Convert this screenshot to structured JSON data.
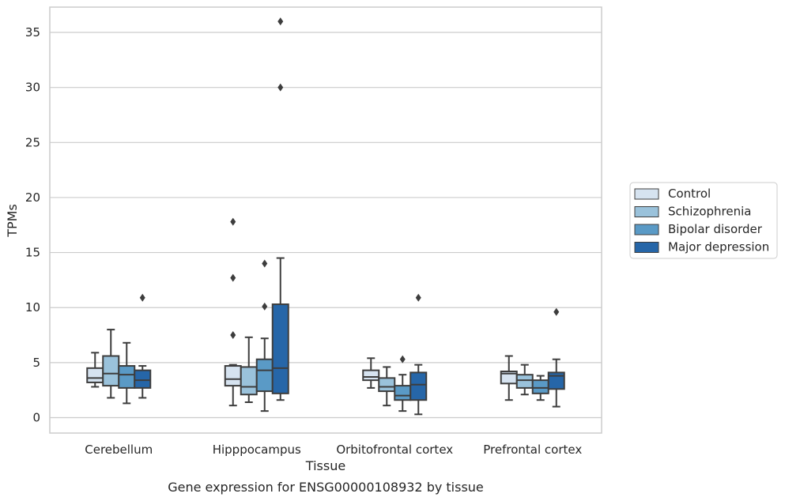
{
  "caption": "Gene expression for ENSG00000108932 by tissue",
  "chart_data": {
    "type": "boxplot",
    "xlabel": "Tissue",
    "ylabel": "TPMs",
    "ylim": [
      -1.4,
      37.3
    ],
    "yticks": [
      0,
      5,
      10,
      15,
      20,
      25,
      30,
      35
    ],
    "grid": "horizontal",
    "legend_position": "right",
    "categories": [
      "Cerebellum",
      "Hipppocampus",
      "Orbitofrontal cortex",
      "Prefrontal cortex"
    ],
    "series": [
      {
        "name": "Control",
        "color": "#d6e3f0",
        "boxes": [
          {
            "whislo": 2.8,
            "q1": 3.2,
            "med": 3.6,
            "q3": 4.5,
            "whishi": 5.9,
            "fliers": []
          },
          {
            "whislo": 1.1,
            "q1": 2.9,
            "med": 3.5,
            "q3": 4.7,
            "whishi": 4.8,
            "fliers": [
              7.5,
              12.7,
              17.8
            ]
          },
          {
            "whislo": 2.7,
            "q1": 3.4,
            "med": 3.7,
            "q3": 4.3,
            "whishi": 5.4,
            "fliers": []
          },
          {
            "whislo": 1.6,
            "q1": 3.1,
            "med": 4.0,
            "q3": 4.2,
            "whishi": 5.6,
            "fliers": []
          }
        ]
      },
      {
        "name": "Schizophrenia",
        "color": "#9ac2db",
        "boxes": [
          {
            "whislo": 1.8,
            "q1": 2.9,
            "med": 4.0,
            "q3": 5.6,
            "whishi": 8.0,
            "fliers": []
          },
          {
            "whislo": 1.4,
            "q1": 2.1,
            "med": 2.8,
            "q3": 4.6,
            "whishi": 7.3,
            "fliers": []
          },
          {
            "whislo": 1.1,
            "q1": 2.4,
            "med": 2.8,
            "q3": 3.6,
            "whishi": 4.6,
            "fliers": []
          },
          {
            "whislo": 2.1,
            "q1": 2.7,
            "med": 3.4,
            "q3": 3.9,
            "whishi": 4.8,
            "fliers": []
          }
        ]
      },
      {
        "name": "Bipolar disorder",
        "color": "#5a9ac6",
        "boxes": [
          {
            "whislo": 1.3,
            "q1": 2.7,
            "med": 3.9,
            "q3": 4.7,
            "whishi": 6.8,
            "fliers": []
          },
          {
            "whislo": 0.6,
            "q1": 2.4,
            "med": 4.3,
            "q3": 5.3,
            "whishi": 7.2,
            "fliers": [
              10.1,
              14.0
            ]
          },
          {
            "whislo": 0.6,
            "q1": 1.6,
            "med": 2.0,
            "q3": 2.9,
            "whishi": 3.9,
            "fliers": [
              5.3
            ]
          },
          {
            "whislo": 1.6,
            "q1": 2.2,
            "med": 2.7,
            "q3": 3.4,
            "whishi": 3.8,
            "fliers": []
          }
        ]
      },
      {
        "name": "Major depression",
        "color": "#2666a8",
        "boxes": [
          {
            "whislo": 1.8,
            "q1": 2.7,
            "med": 3.4,
            "q3": 4.3,
            "whishi": 4.7,
            "fliers": [
              10.9
            ]
          },
          {
            "whislo": 1.6,
            "q1": 2.2,
            "med": 4.5,
            "q3": 10.3,
            "whishi": 14.5,
            "fliers": [
              30.0,
              36.0
            ]
          },
          {
            "whislo": 0.3,
            "q1": 1.6,
            "med": 3.0,
            "q3": 4.1,
            "whishi": 4.8,
            "fliers": [
              10.9
            ]
          },
          {
            "whislo": 1.0,
            "q1": 2.6,
            "med": 3.8,
            "q3": 4.1,
            "whishi": 5.3,
            "fliers": [
              9.6
            ]
          }
        ]
      }
    ]
  }
}
